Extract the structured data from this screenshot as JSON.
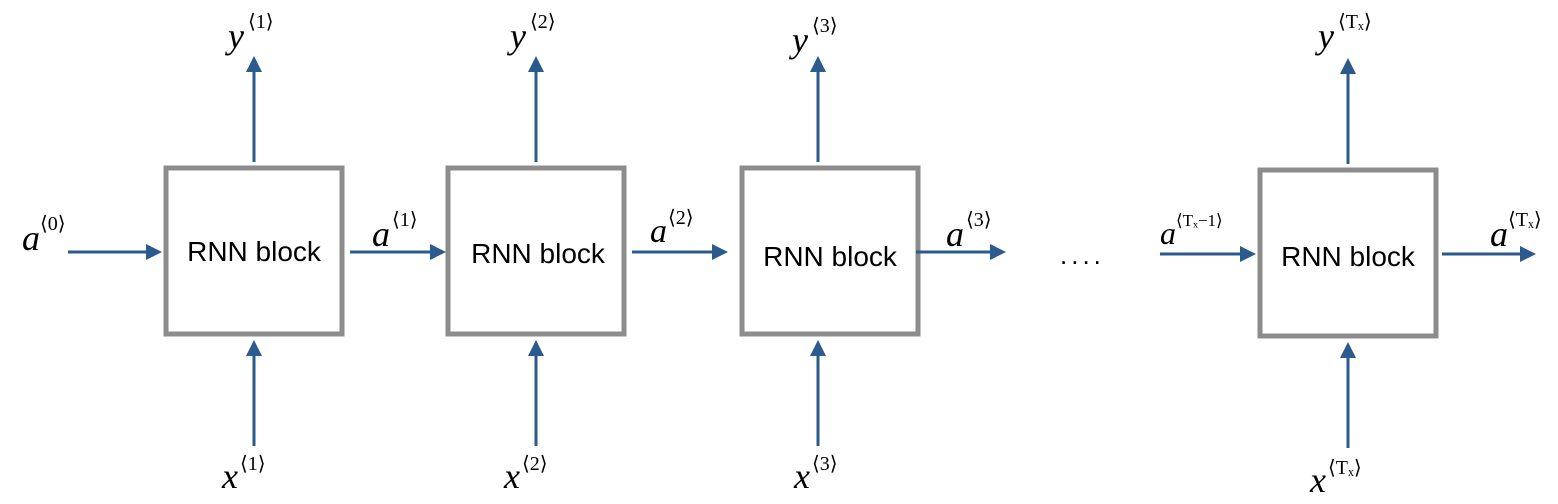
{
  "diagram": {
    "block_label": "RNN block",
    "ellipsis": "....",
    "colors": {
      "arrow": "#2b5a8e",
      "box_border": "#8c8c8c"
    },
    "blocks": [
      {
        "output": {
          "var": "y",
          "sup": "⟨1⟩"
        },
        "input": {
          "var": "x",
          "sup": "⟨1⟩"
        },
        "hidden_out": {
          "var": "a",
          "sup": "⟨1⟩"
        }
      },
      {
        "output": {
          "var": "y",
          "sup": "⟨2⟩"
        },
        "input": {
          "var": "x",
          "sup": "⟨2⟩"
        },
        "hidden_out": {
          "var": "a",
          "sup": "⟨2⟩"
        }
      },
      {
        "output": {
          "var": "y",
          "sup": "⟨3⟩"
        },
        "input": {
          "var": "x",
          "sup": "⟨3⟩"
        },
        "hidden_out": {
          "var": "a",
          "sup": "⟨3⟩"
        }
      },
      {
        "output": {
          "var": "y",
          "sup": "⟨Tₓ⟩"
        },
        "input": {
          "var": "x",
          "sup": "⟨Tₓ⟩"
        },
        "hidden_out": {
          "var": "a",
          "sup": "⟨Tₓ⟩"
        }
      }
    ],
    "initial_state": {
      "var": "a",
      "sup": "⟨0⟩"
    },
    "last_input_state": {
      "var": "a",
      "sup": "⟨Tₓ−1⟩"
    }
  }
}
